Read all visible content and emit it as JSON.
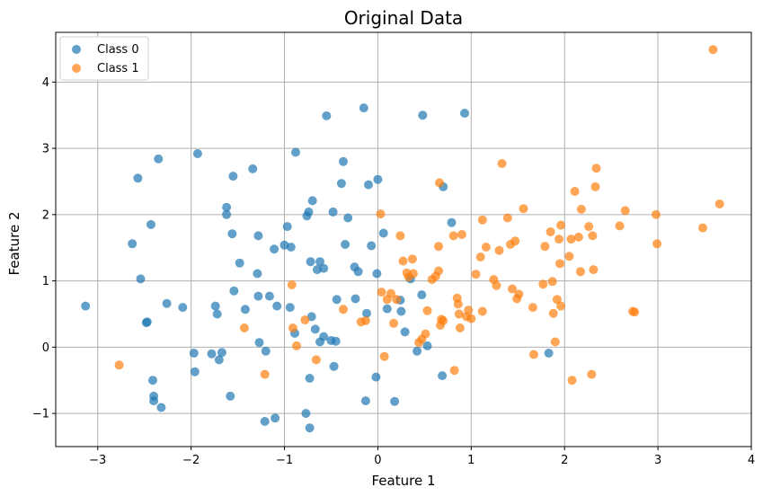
{
  "chart_data": {
    "type": "scatter",
    "title": "Original Data",
    "xlabel": "Feature 1",
    "ylabel": "Feature 2",
    "xlim": [
      -3.45,
      4.0
    ],
    "ylim": [
      -1.5,
      4.75
    ],
    "xticks": [
      -3,
      -2,
      -1,
      0,
      1,
      2,
      3,
      4
    ],
    "yticks": [
      -1,
      0,
      1,
      2,
      3,
      4
    ],
    "grid": true,
    "legend_position": "top-left",
    "series": [
      {
        "name": "Class 0",
        "color": "#1f77b4",
        "points": [
          [
            -3.13,
            0.62
          ],
          [
            -2.63,
            1.56
          ],
          [
            -2.57,
            2.55
          ],
          [
            -2.54,
            1.03
          ],
          [
            -2.48,
            0.37
          ],
          [
            -2.47,
            0.38
          ],
          [
            -2.43,
            1.85
          ],
          [
            -2.41,
            -0.5
          ],
          [
            -2.4,
            -0.74
          ],
          [
            -2.4,
            -0.81
          ],
          [
            -2.35,
            2.84
          ],
          [
            -2.32,
            -0.91
          ],
          [
            -2.26,
            0.66
          ],
          [
            -2.09,
            0.6
          ],
          [
            -1.97,
            -0.09
          ],
          [
            -1.96,
            -0.37
          ],
          [
            -1.93,
            2.92
          ],
          [
            -1.78,
            -0.1
          ],
          [
            -1.74,
            0.62
          ],
          [
            -1.72,
            0.5
          ],
          [
            -1.7,
            -0.19
          ],
          [
            -1.67,
            -0.08
          ],
          [
            -1.62,
            2.11
          ],
          [
            -1.62,
            2.0
          ],
          [
            -1.58,
            -0.74
          ],
          [
            -1.56,
            1.71
          ],
          [
            -1.55,
            2.58
          ],
          [
            -1.54,
            0.85
          ],
          [
            -1.48,
            1.27
          ],
          [
            -1.42,
            0.57
          ],
          [
            -1.34,
            2.69
          ],
          [
            -1.29,
            1.11
          ],
          [
            -1.28,
            0.77
          ],
          [
            -1.28,
            1.68
          ],
          [
            -1.27,
            0.07
          ],
          [
            -1.21,
            -1.12
          ],
          [
            -1.2,
            -0.06
          ],
          [
            -1.16,
            0.77
          ],
          [
            -1.11,
            1.48
          ],
          [
            -1.1,
            -1.07
          ],
          [
            -1.08,
            0.62
          ],
          [
            -1.0,
            1.54
          ],
          [
            -0.97,
            1.82
          ],
          [
            -0.94,
            0.6
          ],
          [
            -0.93,
            1.51
          ],
          [
            -0.88,
            2.94
          ],
          [
            -0.89,
            0.21
          ],
          [
            -0.77,
            -1.0
          ],
          [
            -0.76,
            1.98
          ],
          [
            -0.74,
            2.04
          ],
          [
            -0.73,
            -0.47
          ],
          [
            -0.73,
            -1.22
          ],
          [
            -0.72,
            1.29
          ],
          [
            -0.71,
            0.46
          ],
          [
            -0.7,
            2.21
          ],
          [
            -0.67,
            0.27
          ],
          [
            -0.65,
            1.17
          ],
          [
            -0.62,
            1.29
          ],
          [
            -0.62,
            0.08
          ],
          [
            -0.58,
            0.16
          ],
          [
            -0.58,
            1.19
          ],
          [
            -0.55,
            3.49
          ],
          [
            -0.5,
            0.1
          ],
          [
            -0.48,
            2.04
          ],
          [
            -0.47,
            -0.29
          ],
          [
            -0.45,
            0.09
          ],
          [
            -0.44,
            0.72
          ],
          [
            -0.39,
            2.47
          ],
          [
            -0.37,
            2.8
          ],
          [
            -0.35,
            1.55
          ],
          [
            -0.32,
            1.95
          ],
          [
            -0.25,
            1.21
          ],
          [
            -0.24,
            0.73
          ],
          [
            -0.21,
            1.14
          ],
          [
            -0.15,
            3.61
          ],
          [
            -0.13,
            -0.81
          ],
          [
            -0.12,
            0.51
          ],
          [
            -0.1,
            2.45
          ],
          [
            -0.07,
            1.53
          ],
          [
            -0.02,
            -0.45
          ],
          [
            -0.01,
            1.11
          ],
          [
            0.0,
            2.53
          ],
          [
            0.06,
            1.72
          ],
          [
            0.1,
            0.58
          ],
          [
            0.18,
            -0.82
          ],
          [
            0.24,
            0.71
          ],
          [
            0.25,
            0.54
          ],
          [
            0.29,
            0.23
          ],
          [
            0.35,
            1.03
          ],
          [
            0.42,
            -0.06
          ],
          [
            0.47,
            0.79
          ],
          [
            0.48,
            3.5
          ],
          [
            0.53,
            0.02
          ],
          [
            0.69,
            -0.43
          ],
          [
            0.7,
            2.42
          ],
          [
            0.79,
            1.88
          ],
          [
            0.93,
            3.53
          ],
          [
            1.83,
            -0.09
          ]
        ]
      },
      {
        "name": "Class 1",
        "color": "#ff7f0e",
        "points": [
          [
            -2.77,
            -0.27
          ],
          [
            -1.43,
            0.29
          ],
          [
            -1.21,
            -0.41
          ],
          [
            -0.92,
            0.94
          ],
          [
            -0.91,
            0.29
          ],
          [
            -0.87,
            0.02
          ],
          [
            -0.78,
            0.41
          ],
          [
            -0.66,
            -0.19
          ],
          [
            -0.37,
            0.57
          ],
          [
            -0.18,
            0.38
          ],
          [
            -0.13,
            0.4
          ],
          [
            0.03,
            2.01
          ],
          [
            0.04,
            0.83
          ],
          [
            0.07,
            -0.14
          ],
          [
            0.1,
            0.72
          ],
          [
            0.14,
            0.81
          ],
          [
            0.17,
            0.36
          ],
          [
            0.2,
            0.72
          ],
          [
            0.24,
            1.68
          ],
          [
            0.27,
            1.3
          ],
          [
            0.31,
            1.12
          ],
          [
            0.33,
            1.06
          ],
          [
            0.37,
            1.33
          ],
          [
            0.38,
            1.11
          ],
          [
            0.44,
            0.07
          ],
          [
            0.47,
            0.12
          ],
          [
            0.51,
            0.2
          ],
          [
            0.53,
            0.55
          ],
          [
            0.58,
            1.02
          ],
          [
            0.62,
            1.07
          ],
          [
            0.65,
            1.15
          ],
          [
            0.65,
            1.52
          ],
          [
            0.66,
            2.48
          ],
          [
            0.67,
            0.33
          ],
          [
            0.68,
            0.42
          ],
          [
            0.7,
            0.4
          ],
          [
            0.81,
            1.68
          ],
          [
            0.82,
            -0.35
          ],
          [
            0.85,
            0.74
          ],
          [
            0.86,
            0.65
          ],
          [
            0.87,
            0.5
          ],
          [
            0.88,
            0.29
          ],
          [
            0.9,
            1.7
          ],
          [
            0.95,
            0.46
          ],
          [
            0.97,
            0.56
          ],
          [
            1.0,
            0.43
          ],
          [
            1.05,
            1.1
          ],
          [
            1.1,
            1.36
          ],
          [
            1.12,
            1.92
          ],
          [
            1.12,
            0.54
          ],
          [
            1.16,
            1.51
          ],
          [
            1.24,
            1.02
          ],
          [
            1.27,
            0.93
          ],
          [
            1.3,
            1.46
          ],
          [
            1.33,
            2.77
          ],
          [
            1.39,
            1.95
          ],
          [
            1.42,
            1.55
          ],
          [
            1.44,
            0.88
          ],
          [
            1.47,
            1.6
          ],
          [
            1.49,
            0.73
          ],
          [
            1.51,
            0.8
          ],
          [
            1.56,
            2.09
          ],
          [
            1.66,
            0.6
          ],
          [
            1.67,
            -0.11
          ],
          [
            1.77,
            0.95
          ],
          [
            1.79,
            1.52
          ],
          [
            1.85,
            1.74
          ],
          [
            1.87,
            0.99
          ],
          [
            1.88,
            0.51
          ],
          [
            1.9,
            0.08
          ],
          [
            1.92,
            0.72
          ],
          [
            1.94,
            1.63
          ],
          [
            1.95,
            1.26
          ],
          [
            1.96,
            1.84
          ],
          [
            1.96,
            0.62
          ],
          [
            2.05,
            1.37
          ],
          [
            2.07,
            1.63
          ],
          [
            2.08,
            -0.5
          ],
          [
            2.11,
            2.35
          ],
          [
            2.15,
            1.66
          ],
          [
            2.17,
            1.14
          ],
          [
            2.18,
            2.08
          ],
          [
            2.26,
            1.82
          ],
          [
            2.29,
            -0.41
          ],
          [
            2.3,
            1.68
          ],
          [
            2.31,
            1.17
          ],
          [
            2.33,
            2.42
          ],
          [
            2.34,
            2.7
          ],
          [
            2.59,
            1.83
          ],
          [
            2.65,
            2.06
          ],
          [
            2.73,
            0.54
          ],
          [
            2.75,
            0.53
          ],
          [
            2.98,
            2.0
          ],
          [
            2.99,
            1.56
          ],
          [
            3.48,
            1.8
          ],
          [
            3.59,
            4.49
          ],
          [
            3.66,
            2.16
          ]
        ]
      }
    ]
  }
}
